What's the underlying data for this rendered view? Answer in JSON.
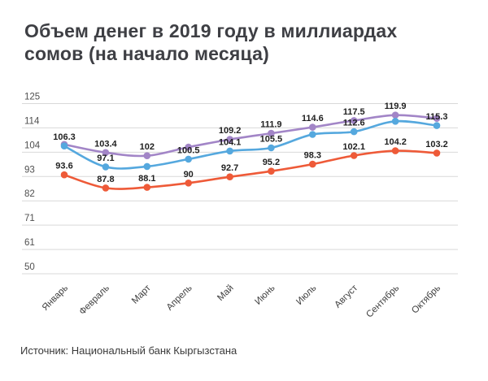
{
  "title": "Объем денег в 2019 году в миллиардах сомов (на начало месяца)",
  "source": "Источник: Национальный банк Кыргызстана",
  "colors": {
    "purple": "#a285c7",
    "blue": "#55a8de",
    "orange": "#ee5a38",
    "grid": "#d9d9d9",
    "point_label": "#1f1f1f",
    "axis_text": "#4f4f4f",
    "month_text": "#3f3f3f"
  },
  "chart_data": {
    "type": "line",
    "title": "Объем денег в 2019 году в миллиардах сомов (на начало месяца)",
    "categories": [
      "Январь",
      "Февраль",
      "Март",
      "Апрель",
      "Май",
      "Июнь",
      "Июль",
      "Август",
      "Сентябрь",
      "Октябрь"
    ],
    "series": [
      {
        "name": "series-purple",
        "color": "#a285c7",
        "values": [
          107.0,
          103.4,
          102,
          105.8,
          109.2,
          111.9,
          114.6,
          117.5,
          119.9,
          118.5
        ],
        "point_labels": [
          null,
          "103.4",
          "102",
          null,
          "109.2",
          "111.9",
          "114.6",
          "117.5",
          "119.9",
          null
        ]
      },
      {
        "name": "series-blue",
        "color": "#55a8de",
        "values": [
          106.3,
          97.1,
          97.3,
          100.5,
          104.1,
          105.5,
          111.4,
          112.6,
          117.2,
          115.3
        ],
        "point_labels": [
          "106.3",
          "97.1",
          null,
          "100.5",
          "104.1",
          "105.5",
          null,
          "112.6",
          null,
          "115.3"
        ]
      },
      {
        "name": "series-orange",
        "color": "#ee5a38",
        "values": [
          93.6,
          87.8,
          88.1,
          90,
          92.7,
          95.2,
          98.3,
          102.1,
          104.2,
          103.2
        ],
        "point_labels": [
          "93.6",
          "87.8",
          "88.1",
          "90",
          "92.7",
          "95.2",
          "98.3",
          "102.1",
          "104.2",
          "103.2"
        ]
      }
    ],
    "y_ticks": [
      125,
      114,
      104,
      93,
      82,
      71,
      61,
      50
    ],
    "ylim": [
      50,
      125
    ],
    "xlabel": "",
    "ylabel": "",
    "grid": true,
    "legend": false
  }
}
